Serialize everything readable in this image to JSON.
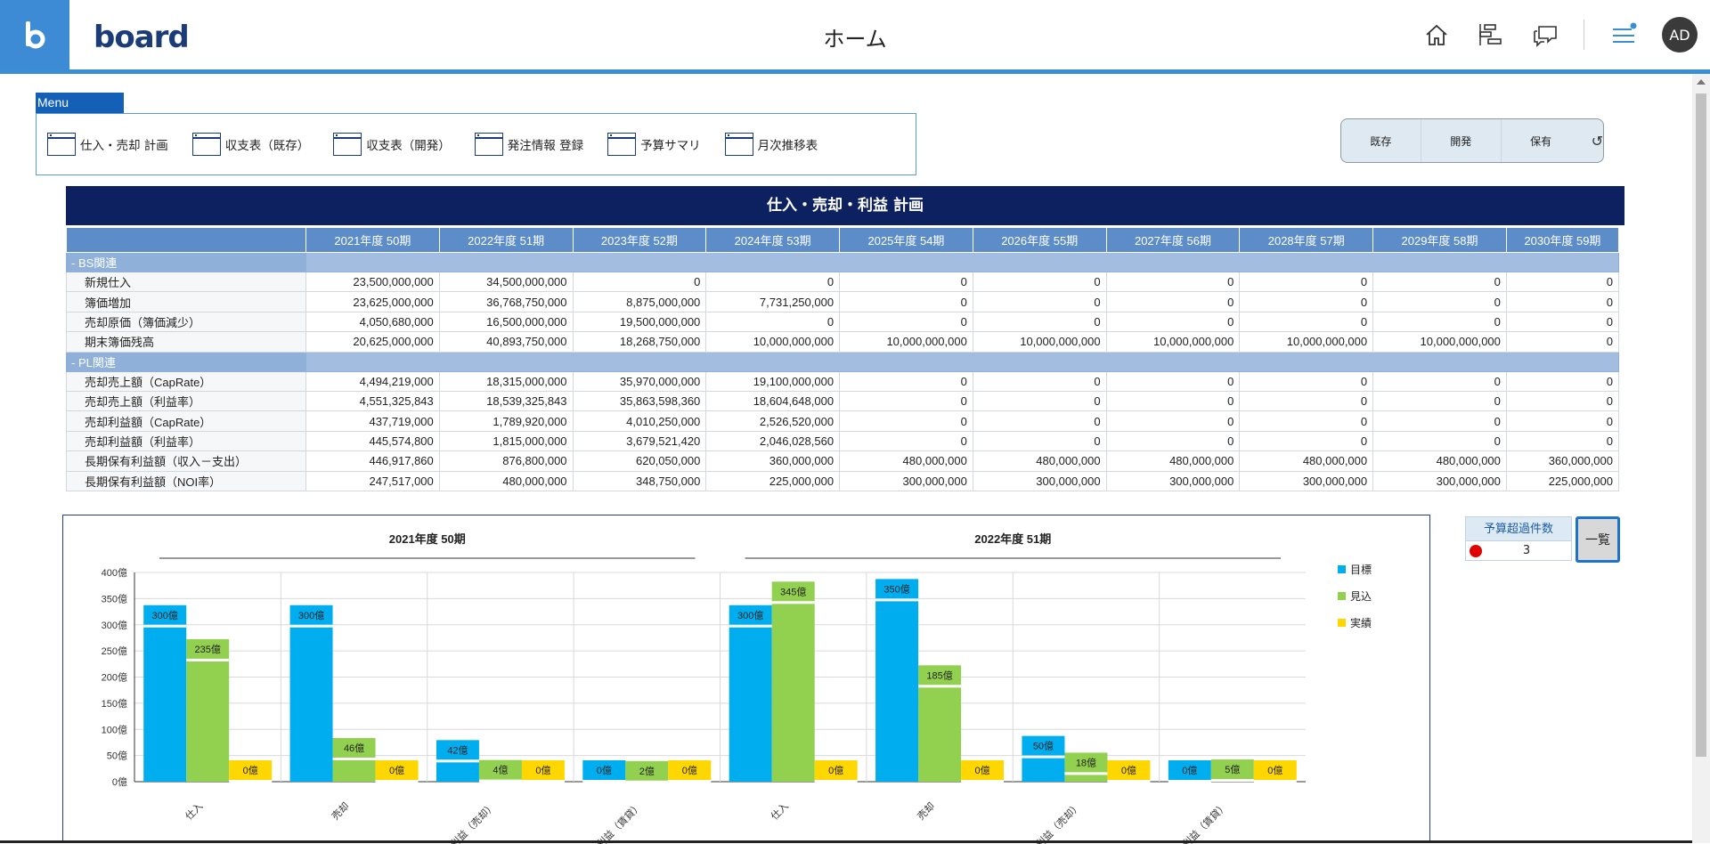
{
  "header": {
    "logo_text": "board",
    "title": "ホーム",
    "avatar": "AD",
    "icons": [
      "home-icon",
      "gantt-icon",
      "chat-icon",
      "menu-notification-icon"
    ]
  },
  "menu": {
    "tab_label": "Menu",
    "items": [
      {
        "label": "仕入・売却 計画"
      },
      {
        "label": "収支表（既存）"
      },
      {
        "label": "収支表（開発）"
      },
      {
        "label": "発注情報 登録"
      },
      {
        "label": "予算サマリ"
      },
      {
        "label": "月次推移表"
      }
    ]
  },
  "filter": {
    "options": [
      "既存",
      "開発",
      "保有"
    ],
    "refresh_icon": "refresh-icon"
  },
  "table": {
    "title": "仕入・売却・利益 計画",
    "columns": [
      "2021年度 50期",
      "2022年度 51期",
      "2023年度 52期",
      "2024年度 53期",
      "2025年度 54期",
      "2026年度 55期",
      "2027年度 56期",
      "2028年度 57期",
      "2029年度 58期",
      "2030年度 59期"
    ],
    "groups": [
      {
        "label": "-  BS関連",
        "rows": [
          {
            "label": "新規仕入",
            "values": [
              "23,500,000,000",
              "34,500,000,000",
              "0",
              "0",
              "0",
              "0",
              "0",
              "0",
              "0",
              "0"
            ]
          },
          {
            "label": "簿価増加",
            "values": [
              "23,625,000,000",
              "36,768,750,000",
              "8,875,000,000",
              "7,731,250,000",
              "0",
              "0",
              "0",
              "0",
              "0",
              "0"
            ]
          },
          {
            "label": "売却原価（簿価減少）",
            "values": [
              "4,050,680,000",
              "16,500,000,000",
              "19,500,000,000",
              "0",
              "0",
              "0",
              "0",
              "0",
              "0",
              "0"
            ]
          },
          {
            "label": "期末簿価残高",
            "values": [
              "20,625,000,000",
              "40,893,750,000",
              "18,268,750,000",
              "10,000,000,000",
              "10,000,000,000",
              "10,000,000,000",
              "10,000,000,000",
              "10,000,000,000",
              "10,000,000,000",
              "0"
            ]
          }
        ]
      },
      {
        "label": "-  PL関連",
        "rows": [
          {
            "label": "売却売上額（CapRate）",
            "values": [
              "4,494,219,000",
              "18,315,000,000",
              "35,970,000,000",
              "19,100,000,000",
              "0",
              "0",
              "0",
              "0",
              "0",
              "0"
            ]
          },
          {
            "label": "売却売上額（利益率）",
            "values": [
              "4,551,325,843",
              "18,539,325,843",
              "35,863,598,360",
              "18,604,648,000",
              "0",
              "0",
              "0",
              "0",
              "0",
              "0"
            ]
          },
          {
            "label": "売却利益額（CapRate）",
            "values": [
              "437,719,000",
              "1,789,920,000",
              "4,010,250,000",
              "2,526,520,000",
              "0",
              "0",
              "0",
              "0",
              "0",
              "0"
            ]
          },
          {
            "label": "売却利益額（利益率）",
            "values": [
              "445,574,800",
              "1,815,000,000",
              "3,679,521,420",
              "2,046,028,560",
              "0",
              "0",
              "0",
              "0",
              "0",
              "0"
            ]
          },
          {
            "label": "長期保有利益額（収入－支出）",
            "values": [
              "446,917,860",
              "876,800,000",
              "620,050,000",
              "360,000,000",
              "480,000,000",
              "480,000,000",
              "480,000,000",
              "480,000,000",
              "480,000,000",
              "360,000,000"
            ]
          },
          {
            "label": "長期保有利益額（NOI率）",
            "values": [
              "247,517,000",
              "480,000,000",
              "348,750,000",
              "225,000,000",
              "300,000,000",
              "300,000,000",
              "300,000,000",
              "300,000,000",
              "300,000,000",
              "225,000,000"
            ]
          }
        ]
      }
    ]
  },
  "chart_data": {
    "type": "bar",
    "panels": [
      {
        "title": "2021年度 50期",
        "categories": [
          "仕入",
          "売却",
          "利益（売却）",
          "利益（賃貸）"
        ]
      },
      {
        "title": "2022年度 51期",
        "categories": [
          "仕入",
          "売却",
          "利益（売却）",
          "利益（賃貸）"
        ]
      }
    ],
    "series": [
      {
        "name": "目標",
        "color": "#00aeef",
        "values": [
          300,
          300,
          42,
          0,
          300,
          350,
          50,
          0
        ],
        "labels": [
          "300億",
          "300億",
          "42億",
          "0億",
          "300億",
          "350億",
          "50億",
          "0億"
        ]
      },
      {
        "name": "見込",
        "color": "#92d050",
        "values": [
          235,
          46,
          4,
          2,
          345,
          185,
          18,
          5
        ],
        "labels": [
          "235億",
          "46億",
          "4億",
          "2億",
          "345億",
          "185億",
          "18億",
          "5億"
        ]
      },
      {
        "name": "実績",
        "color": "#ffd700",
        "values": [
          0,
          0,
          0,
          0,
          0,
          0,
          0,
          0
        ],
        "labels": [
          "0億",
          "0億",
          "0億",
          "0億",
          "0億",
          "0億",
          "0億",
          "0億"
        ]
      }
    ],
    "ylim": [
      0,
      400
    ],
    "yticks": [
      "0億",
      "50億",
      "100億",
      "150億",
      "200億",
      "250億",
      "300億",
      "350億",
      "400億"
    ],
    "grid": true,
    "legend": "right"
  },
  "budget": {
    "header": "予算超過件数",
    "count": "3",
    "list_button": "一覧"
  }
}
